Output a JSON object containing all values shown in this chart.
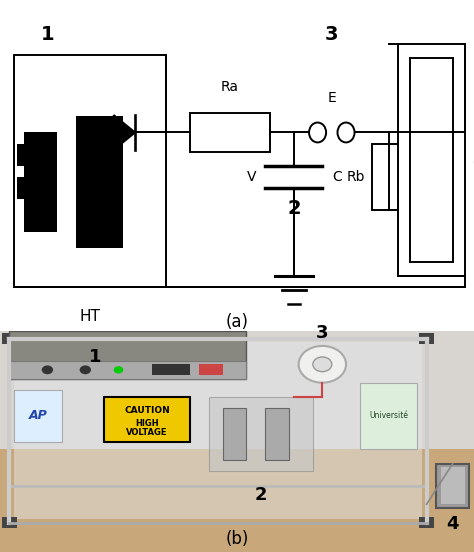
{
  "title_a": "(a)",
  "title_b": "(b)",
  "bg_color": "#ffffff",
  "circuit": {
    "label_1": "1",
    "label_2": "2",
    "label_3": "3",
    "label_4": "4",
    "label_HT": "HT",
    "label_Ra": "Ra",
    "label_Rb": "Rb",
    "label_V": "V",
    "label_C": "C",
    "label_E": "E"
  },
  "fig_width": 4.74,
  "fig_height": 5.52,
  "dpi": 100
}
